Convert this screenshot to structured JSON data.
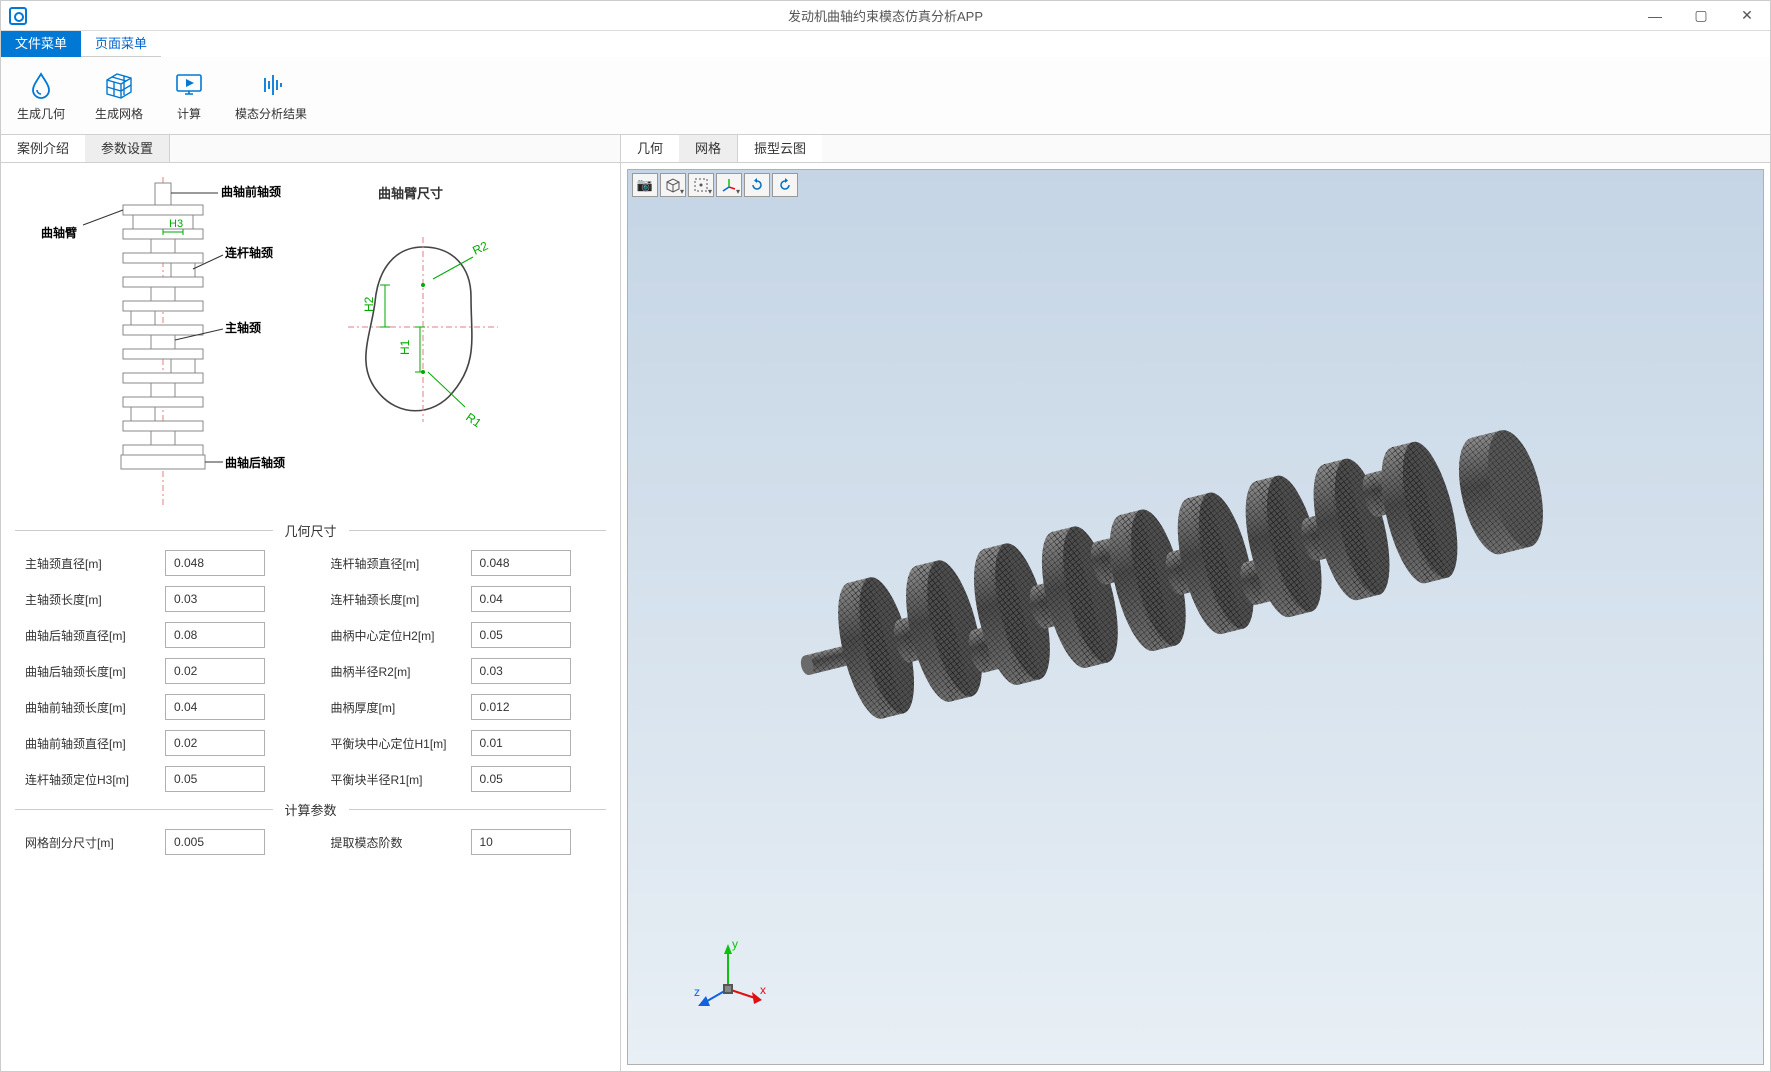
{
  "window": {
    "title": "发动机曲轴约束模态仿真分析APP"
  },
  "menubar": {
    "file": "文件菜单",
    "page": "页面菜单"
  },
  "ribbon": {
    "gen_geom": "生成几何",
    "gen_mesh": "生成网格",
    "compute": "计算",
    "modal_result": "模态分析结果"
  },
  "left_tabs": {
    "case_intro": "案例介绍",
    "param_set": "参数设置"
  },
  "right_tabs": {
    "geometry": "几何",
    "mesh": "网格",
    "mode_shape": "振型云图"
  },
  "schematic_labels": {
    "front_journal": "曲轴前轴颈",
    "crank_arm": "曲轴臂",
    "h3": "H3",
    "conrod_journal": "连杆轴颈",
    "main_journal": "主轴颈",
    "rear_journal": "曲轴后轴颈",
    "crank_arm_dim": "曲轴臂尺寸",
    "r2": "R2",
    "h2": "H2",
    "h1": "H1",
    "r1": "R1"
  },
  "groups": {
    "geom": "几何尺寸",
    "calc": "计算参数"
  },
  "params": {
    "main_journal_dia": {
      "label": "主轴颈直径[m]",
      "value": "0.048"
    },
    "conrod_journal_dia": {
      "label": "连杆轴颈直径[m]",
      "value": "0.048"
    },
    "main_journal_len": {
      "label": "主轴颈长度[m]",
      "value": "0.03"
    },
    "conrod_journal_len": {
      "label": "连杆轴颈长度[m]",
      "value": "0.04"
    },
    "rear_journal_dia": {
      "label": "曲轴后轴颈直径[m]",
      "value": "0.08"
    },
    "crank_center_h2": {
      "label": "曲柄中心定位H2[m]",
      "value": "0.05"
    },
    "rear_journal_len": {
      "label": "曲轴后轴颈长度[m]",
      "value": "0.02"
    },
    "crank_radius_r2": {
      "label": "曲柄半径R2[m]",
      "value": "0.03"
    },
    "front_journal_len": {
      "label": "曲轴前轴颈长度[m]",
      "value": "0.04"
    },
    "crank_thickness": {
      "label": "曲柄厚度[m]",
      "value": "0.012"
    },
    "front_journal_dia": {
      "label": "曲轴前轴颈直径[m]",
      "value": "0.02"
    },
    "balance_center_h1": {
      "label": "平衡块中心定位H1[m]",
      "value": "0.01"
    },
    "conrod_pos_h3": {
      "label": "连杆轴颈定位H3[m]",
      "value": "0.05"
    },
    "balance_radius_r1": {
      "label": "平衡块半径R1[m]",
      "value": "0.05"
    },
    "mesh_size": {
      "label": "网格剖分尺寸[m]",
      "value": "0.005"
    },
    "mode_count": {
      "label": "提取模态阶数",
      "value": "10"
    }
  },
  "colors": {
    "accent": "#0078d4",
    "dim_green": "#00aa00",
    "axis_x": "#e01010",
    "axis_y": "#10c010",
    "axis_z": "#1060e0",
    "mesh_dark": "#2a2a2a",
    "mesh_mid": "#585858"
  }
}
